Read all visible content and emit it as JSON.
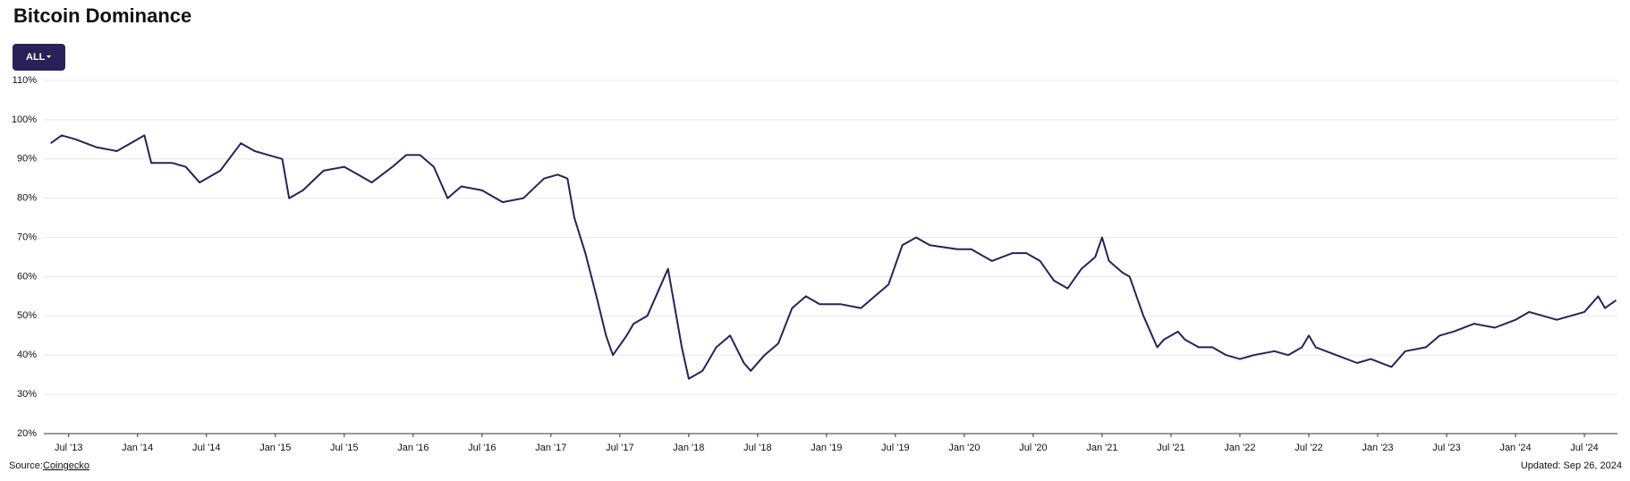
{
  "chart_data": {
    "type": "line",
    "title": "Bitcoin Dominance",
    "range_button": "ALL",
    "source_label": "Source:",
    "source": "Coingecko",
    "updated": "Updated: Sep 26, 2024",
    "xlim": [
      2013.32,
      2024.74
    ],
    "xticks": [
      {
        "value": 2013.5,
        "label": "Jul '13"
      },
      {
        "value": 2014,
        "label": "Jan '14"
      },
      {
        "value": 2014.5,
        "label": "Jul '14"
      },
      {
        "value": 2015,
        "label": "Jan '15"
      },
      {
        "value": 2015.5,
        "label": "Jul '15"
      },
      {
        "value": 2016,
        "label": "Jan '16"
      },
      {
        "value": 2016.5,
        "label": "Jul '16"
      },
      {
        "value": 2017,
        "label": "Jan '17"
      },
      {
        "value": 2017.5,
        "label": "Jul '17"
      },
      {
        "value": 2018,
        "label": "Jan '18"
      },
      {
        "value": 2018.5,
        "label": "Jul '18"
      },
      {
        "value": 2019,
        "label": "Jan '19"
      },
      {
        "value": 2019.5,
        "label": "Jul '19"
      },
      {
        "value": 2020,
        "label": "Jan '20"
      },
      {
        "value": 2020.5,
        "label": "Jul '20"
      },
      {
        "value": 2021,
        "label": "Jan '21"
      },
      {
        "value": 2021.5,
        "label": "Jul '21"
      },
      {
        "value": 2022,
        "label": "Jan '22"
      },
      {
        "value": 2022.5,
        "label": "Jul '22"
      },
      {
        "value": 2023,
        "label": "Jan '23"
      },
      {
        "value": 2023.5,
        "label": "Jul '23"
      },
      {
        "value": 2024,
        "label": "Jan '24"
      },
      {
        "value": 2024.5,
        "label": "Jul '24"
      }
    ],
    "ylim": [
      20,
      110
    ],
    "yticks": [
      {
        "value": 20,
        "label": "20%"
      },
      {
        "value": 30,
        "label": "30%"
      },
      {
        "value": 40,
        "label": "40%"
      },
      {
        "value": 50,
        "label": "50%"
      },
      {
        "value": 60,
        "label": "60%"
      },
      {
        "value": 70,
        "label": "70%"
      },
      {
        "value": 80,
        "label": "80%"
      },
      {
        "value": 90,
        "label": "90%"
      },
      {
        "value": 100,
        "label": "100%"
      },
      {
        "value": 110,
        "label": "110%"
      }
    ],
    "grid": true,
    "series": [
      {
        "color": "#2a2158",
        "x": [
          2013.37,
          2013.45,
          2013.55,
          2013.7,
          2013.85,
          2013.95,
          2014.05,
          2014.1,
          2014.25,
          2014.35,
          2014.45,
          2014.6,
          2014.75,
          2014.85,
          2014.95,
          2015.05,
          2015.1,
          2015.2,
          2015.35,
          2015.5,
          2015.6,
          2015.7,
          2015.85,
          2015.95,
          2016.05,
          2016.15,
          2016.25,
          2016.35,
          2016.5,
          2016.65,
          2016.8,
          2016.95,
          2017.05,
          2017.12,
          2017.17,
          2017.25,
          2017.33,
          2017.4,
          2017.45,
          2017.55,
          2017.6,
          2017.7,
          2017.8,
          2017.85,
          2017.9,
          2017.95,
          2018.0,
          2018.1,
          2018.2,
          2018.3,
          2018.4,
          2018.45,
          2018.55,
          2018.65,
          2018.75,
          2018.85,
          2018.95,
          2019.1,
          2019.25,
          2019.35,
          2019.45,
          2019.55,
          2019.65,
          2019.75,
          2019.95,
          2020.05,
          2020.2,
          2020.35,
          2020.45,
          2020.55,
          2020.65,
          2020.75,
          2020.85,
          2020.95,
          2021.0,
          2021.05,
          2021.15,
          2021.2,
          2021.3,
          2021.4,
          2021.45,
          2021.55,
          2021.6,
          2021.7,
          2021.8,
          2021.9,
          2022.0,
          2022.1,
          2022.25,
          2022.35,
          2022.45,
          2022.5,
          2022.55,
          2022.7,
          2022.85,
          2022.95,
          2023.1,
          2023.2,
          2023.35,
          2023.45,
          2023.55,
          2023.7,
          2023.85,
          2024.0,
          2024.1,
          2024.2,
          2024.3,
          2024.4,
          2024.5,
          2024.55,
          2024.6,
          2024.65,
          2024.73
        ],
        "values": [
          94,
          96,
          95,
          93,
          92,
          94,
          96,
          89,
          89,
          88,
          84,
          87,
          94,
          92,
          91,
          90,
          80,
          82,
          87,
          88,
          86,
          84,
          88,
          91,
          91,
          88,
          80,
          83,
          82,
          79,
          80,
          85,
          86,
          85,
          75,
          66,
          55,
          45,
          40,
          45,
          48,
          50,
          58,
          62,
          52,
          42,
          34,
          36,
          42,
          45,
          38,
          36,
          40,
          43,
          52,
          55,
          53,
          53,
          52,
          55,
          58,
          68,
          70,
          68,
          67,
          67,
          64,
          66,
          66,
          64,
          59,
          57,
          62,
          65,
          70,
          64,
          61,
          60,
          50,
          42,
          44,
          46,
          44,
          42,
          42,
          40,
          39,
          40,
          41,
          40,
          42,
          45,
          42,
          40,
          38,
          39,
          37,
          41,
          42,
          45,
          46,
          48,
          47,
          49,
          51,
          50,
          49,
          50,
          51,
          53,
          55,
          52,
          54
        ]
      }
    ]
  }
}
